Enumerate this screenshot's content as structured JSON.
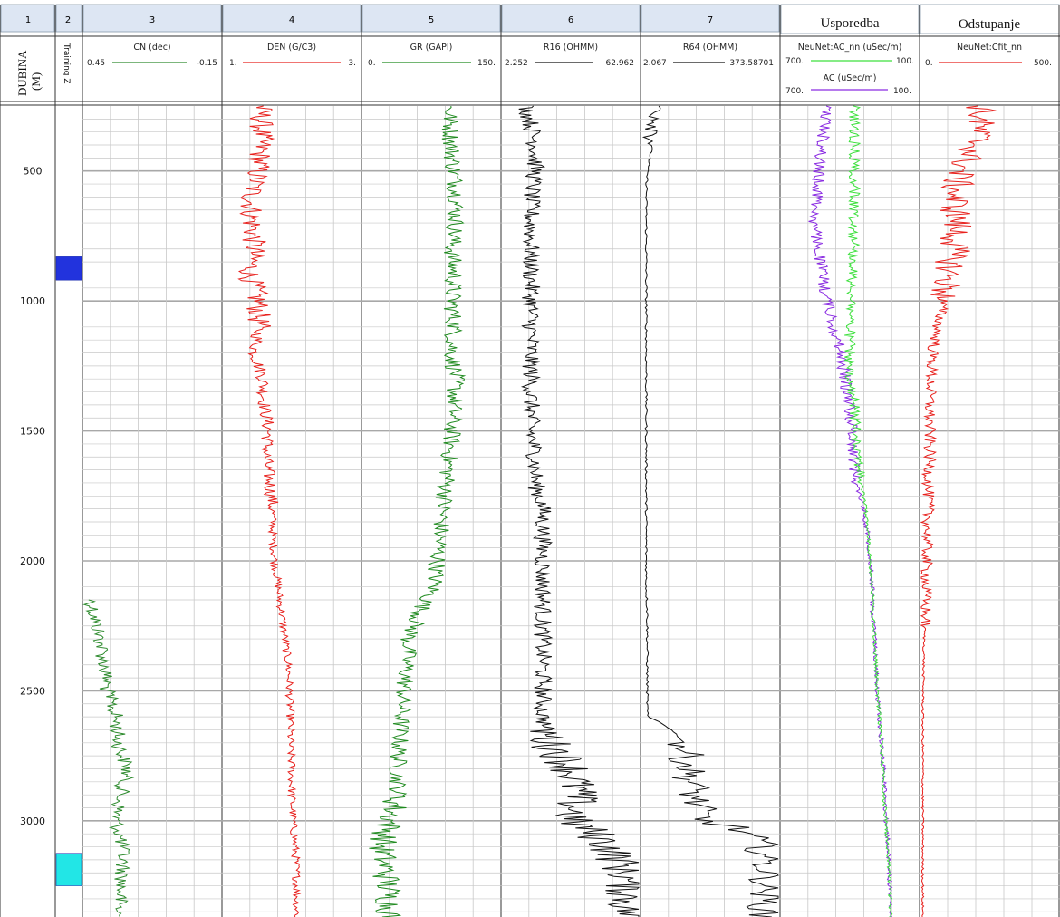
{
  "tracks": {
    "numbers": [
      "1",
      "2",
      "3",
      "4",
      "5",
      "6",
      "7"
    ],
    "usporedba_title": "Usporedba",
    "odstupanje_title": "Odstupanje",
    "depth_label_line1": "DUBINA",
    "depth_label_line2": "(M)",
    "training_label": "Training Z"
  },
  "curve_headers": {
    "cn": {
      "name": "CN (dec)",
      "left": "0.45",
      "right": "-0.15"
    },
    "den": {
      "name": "DEN (G/C3)",
      "left": "1.",
      "right": "3."
    },
    "gr": {
      "name": "GR (GAPI)",
      "left": "0.",
      "right": "150."
    },
    "r16": {
      "name": "R16 (OHMM)",
      "left": "2.252",
      "right": "62.962"
    },
    "r64": {
      "name": "R64 (OHMM)",
      "left": "2.067",
      "right": "373.58701"
    },
    "ac_nn": {
      "name": "NeuNet:AC_nn (uSec/m)",
      "left": "700.",
      "right": "100."
    },
    "ac": {
      "name": "AC (uSec/m)",
      "left": "700.",
      "right": "100."
    },
    "cfit": {
      "name": "NeuNet:Cfit_nn",
      "left": "0.",
      "right": "500."
    }
  },
  "depth_ticks": [
    "500",
    "1000",
    "1500",
    "2000",
    "2500",
    "3000"
  ],
  "colors": {
    "cn": "#2e8b2e",
    "den": "#e8201c",
    "gr": "#1f8a1f",
    "r16": "#111111",
    "r64": "#111111",
    "ac_nn": "#3ee03e",
    "ac": "#8a2be2",
    "cfit": "#e8201c",
    "header_bg": "#dde6f3",
    "grid": "#c8c8c8",
    "zone_blue": "#2233dd",
    "zone_cyan": "#22e6e6"
  },
  "chart_data": {
    "type": "line",
    "title": "",
    "ylabel": "DUBINA (M)",
    "depth_range": [
      250,
      3370
    ],
    "training_zones": [
      {
        "top": 830,
        "base": 920,
        "color": "blue"
      },
      {
        "top": 3125,
        "base": 3250,
        "color": "cyan"
      }
    ],
    "depth_levels": [
      250,
      400,
      500,
      600,
      700,
      800,
      900,
      1000,
      1100,
      1200,
      1300,
      1400,
      1500,
      1600,
      1700,
      1800,
      1900,
      2000,
      2100,
      2200,
      2300,
      2400,
      2500,
      2600,
      2700,
      2800,
      2900,
      3000,
      3100,
      3200,
      3370
    ],
    "series": [
      {
        "name": "CN (dec)",
        "scale": [
          0.45,
          -0.15
        ],
        "depth": [
          2150,
          2200,
          2300,
          2400,
          2500,
          2600,
          2700,
          2800,
          2900,
          3000,
          3100,
          3200,
          3370
        ],
        "values": [
          0.42,
          0.41,
          0.38,
          0.36,
          0.35,
          0.31,
          0.3,
          0.26,
          0.29,
          0.31,
          0.28,
          0.28,
          0.3
        ]
      },
      {
        "name": "DEN (G/C3)",
        "values": [
          1.55,
          1.55,
          1.5,
          1.4,
          1.42,
          1.45,
          1.38,
          1.5,
          1.52,
          1.45,
          1.58,
          1.6,
          1.66,
          1.62,
          1.68,
          1.72,
          1.72,
          1.75,
          1.8,
          1.85,
          1.9,
          1.95,
          1.97,
          1.98,
          1.98,
          2.0,
          2.0,
          2.02,
          2.05,
          2.07,
          2.08
        ]
      },
      {
        "name": "GR (GAPI)",
        "values": [
          95,
          97,
          100,
          103,
          102,
          98,
          100,
          98,
          100,
          98,
          102,
          100,
          98,
          95,
          92,
          88,
          85,
          82,
          78,
          62,
          50,
          48,
          45,
          42,
          40,
          38,
          38,
          30,
          20,
          25,
          30
        ]
      },
      {
        "name": "R16 (OHMM)",
        "values": [
          4,
          5,
          5,
          4.5,
          4.5,
          4.5,
          4.5,
          4.5,
          4.5,
          4.5,
          4.5,
          4.5,
          4.5,
          5,
          5,
          6,
          6,
          6,
          6,
          6,
          6,
          6,
          6,
          6,
          7,
          12,
          14,
          12,
          30,
          45,
          50
        ]
      },
      {
        "name": "R64 (OHMM)",
        "values": [
          4,
          3,
          2.5,
          2.4,
          2.4,
          2.4,
          2.4,
          2.4,
          2.4,
          2.4,
          2.4,
          2.4,
          2.4,
          2.4,
          2.4,
          2.4,
          2.4,
          2.4,
          2.4,
          2.5,
          2.5,
          2.5,
          2.5,
          2.5,
          10,
          12,
          15,
          20,
          200,
          250,
          220
        ]
      },
      {
        "name": "NeuNet:AC_nn (uSec/m)",
        "values": [
          380,
          380,
          380,
          380,
          380,
          380,
          390,
          390,
          400,
          400,
          410,
          380,
          370,
          360,
          350,
          330,
          320,
          310,
          300,
          300,
          290,
          285,
          280,
          270,
          260,
          255,
          250,
          240,
          235,
          225,
          220
        ]
      },
      {
        "name": "AC (uSec/m)",
        "values": [
          500,
          520,
          540,
          540,
          560,
          540,
          520,
          500,
          470,
          440,
          420,
          400,
          390,
          380,
          370,
          340,
          320,
          310,
          300,
          300,
          290,
          285,
          280,
          270,
          260,
          250,
          245,
          240,
          230,
          225,
          220
        ]
      },
      {
        "name": "NeuNet:Cfit_nn",
        "values": [
          220,
          200,
          140,
          120,
          130,
          120,
          100,
          80,
          60,
          40,
          35,
          30,
          30,
          30,
          25,
          25,
          20,
          18,
          15,
          15,
          10,
          8,
          6,
          5,
          5,
          5,
          5,
          5,
          5,
          5,
          5
        ]
      }
    ]
  }
}
